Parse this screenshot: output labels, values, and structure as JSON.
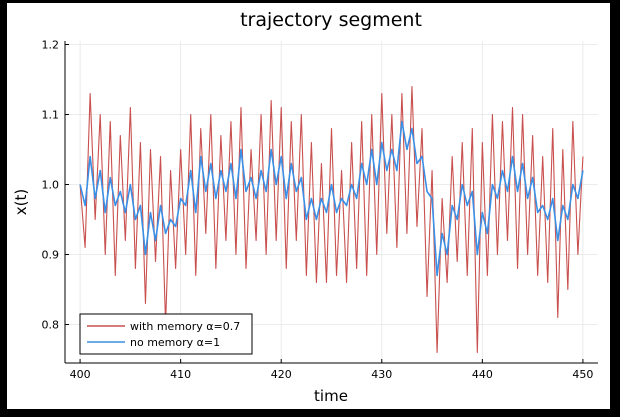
{
  "chart_data": {
    "type": "line",
    "title": "trajectory segment",
    "xlabel": "time",
    "ylabel": "x(t)",
    "xlim": [
      398.5,
      451.5
    ],
    "ylim": [
      0.745,
      1.205
    ],
    "xticks": [
      400,
      410,
      420,
      430,
      440,
      450
    ],
    "xtick_labels": [
      "400",
      "410",
      "420",
      "430",
      "440",
      "450"
    ],
    "yticks": [
      0.8,
      0.9,
      1.0,
      1.1,
      1.2
    ],
    "ytick_labels": [
      "0.8",
      "0.9",
      "1.0",
      "1.1",
      "1.2"
    ],
    "grid": true,
    "legend_position": "bottom-left",
    "series": [
      {
        "name": "with memory α=0.7",
        "color": "#c8504e",
        "x": [
          400,
          400.5,
          401,
          401.5,
          402,
          402.5,
          403,
          403.5,
          404,
          404.5,
          405,
          405.5,
          406,
          406.5,
          407,
          407.5,
          408,
          408.5,
          409,
          409.5,
          410,
          410.5,
          411,
          411.5,
          412,
          412.5,
          413,
          413.5,
          414,
          414.5,
          415,
          415.5,
          416,
          416.5,
          417,
          417.5,
          418,
          418.5,
          419,
          419.5,
          420,
          420.5,
          421,
          421.5,
          422,
          422.5,
          423,
          423.5,
          424,
          424.5,
          425,
          425.5,
          426,
          426.5,
          427,
          427.5,
          428,
          428.5,
          429,
          429.5,
          430,
          430.5,
          431,
          431.5,
          432,
          432.5,
          433,
          433.5,
          434,
          434.5,
          435,
          435.5,
          436,
          436.5,
          437,
          437.5,
          438,
          438.5,
          439,
          439.5,
          440,
          440.5,
          441,
          441.5,
          442,
          442.5,
          443,
          443.5,
          444,
          444.5,
          445,
          445.5,
          446,
          446.5,
          447,
          447.5,
          448,
          448.5,
          449,
          449.5,
          450
        ],
        "values": [
          1.0,
          0.91,
          1.13,
          0.95,
          1.1,
          0.9,
          1.09,
          0.87,
          1.07,
          0.92,
          1.11,
          0.88,
          1.06,
          0.83,
          1.05,
          0.89,
          1.04,
          0.8,
          1.02,
          0.88,
          1.05,
          0.9,
          1.1,
          0.87,
          1.08,
          0.93,
          1.1,
          0.88,
          1.07,
          0.92,
          1.09,
          0.9,
          1.11,
          0.88,
          1.05,
          0.92,
          1.1,
          0.9,
          1.12,
          0.92,
          1.11,
          0.88,
          1.09,
          0.92,
          1.1,
          0.87,
          1.06,
          0.86,
          1.03,
          0.86,
          1.08,
          0.87,
          1.02,
          0.86,
          1.06,
          0.88,
          1.09,
          0.87,
          1.1,
          0.9,
          1.13,
          0.93,
          1.1,
          0.91,
          1.13,
          0.93,
          1.14,
          0.94,
          1.08,
          0.84,
          1.02,
          0.76,
          0.98,
          0.86,
          1.04,
          0.89,
          1.06,
          0.87,
          1.08,
          0.76,
          1.06,
          0.87,
          1.1,
          0.9,
          1.09,
          0.92,
          1.11,
          0.88,
          1.1,
          0.9,
          1.07,
          0.87,
          1.04,
          0.86,
          1.08,
          0.81,
          1.05,
          0.85,
          1.09,
          0.9,
          1.04
        ]
      },
      {
        "name": "no memory α=1",
        "color": "#3a8fe6",
        "x": [
          400,
          400.5,
          401,
          401.5,
          402,
          402.5,
          403,
          403.5,
          404,
          404.5,
          405,
          405.5,
          406,
          406.5,
          407,
          407.5,
          408,
          408.5,
          409,
          409.5,
          410,
          410.5,
          411,
          411.5,
          412,
          412.5,
          413,
          413.5,
          414,
          414.5,
          415,
          415.5,
          416,
          416.5,
          417,
          417.5,
          418,
          418.5,
          419,
          419.5,
          420,
          420.5,
          421,
          421.5,
          422,
          422.5,
          423,
          423.5,
          424,
          424.5,
          425,
          425.5,
          426,
          426.5,
          427,
          427.5,
          428,
          428.5,
          429,
          429.5,
          430,
          430.5,
          431,
          431.5,
          432,
          432.5,
          433,
          433.5,
          434,
          434.5,
          435,
          435.5,
          436,
          436.5,
          437,
          437.5,
          438,
          438.5,
          439,
          439.5,
          440,
          440.5,
          441,
          441.5,
          442,
          442.5,
          443,
          443.5,
          444,
          444.5,
          445,
          445.5,
          446,
          446.5,
          447,
          447.5,
          448,
          448.5,
          449,
          449.5,
          450
        ],
        "values": [
          1.0,
          0.97,
          1.04,
          0.98,
          1.02,
          0.96,
          1.01,
          0.97,
          0.99,
          0.96,
          1.0,
          0.95,
          0.97,
          0.9,
          0.96,
          0.92,
          0.97,
          0.93,
          0.95,
          0.94,
          0.98,
          0.97,
          1.02,
          0.96,
          1.04,
          0.99,
          1.03,
          0.98,
          1.02,
          0.99,
          1.03,
          0.98,
          1.05,
          0.99,
          1.01,
          0.98,
          1.02,
          0.99,
          1.05,
          1.0,
          1.04,
          0.98,
          1.03,
          0.99,
          1.01,
          0.95,
          0.98,
          0.95,
          0.98,
          0.96,
          1.0,
          0.96,
          0.98,
          0.97,
          1.0,
          0.98,
          1.03,
          1.0,
          1.05,
          1.0,
          1.06,
          1.02,
          1.05,
          1.02,
          1.09,
          1.05,
          1.08,
          1.03,
          1.04,
          0.99,
          0.98,
          0.87,
          0.93,
          0.9,
          0.97,
          0.95,
          1.0,
          0.97,
          0.99,
          0.9,
          0.96,
          0.93,
          1.0,
          0.98,
          1.02,
          0.99,
          1.04,
          0.99,
          1.03,
          0.98,
          1.01,
          0.96,
          0.97,
          0.95,
          0.98,
          0.92,
          0.97,
          0.95,
          1.0,
          0.98,
          1.02
        ]
      }
    ]
  }
}
